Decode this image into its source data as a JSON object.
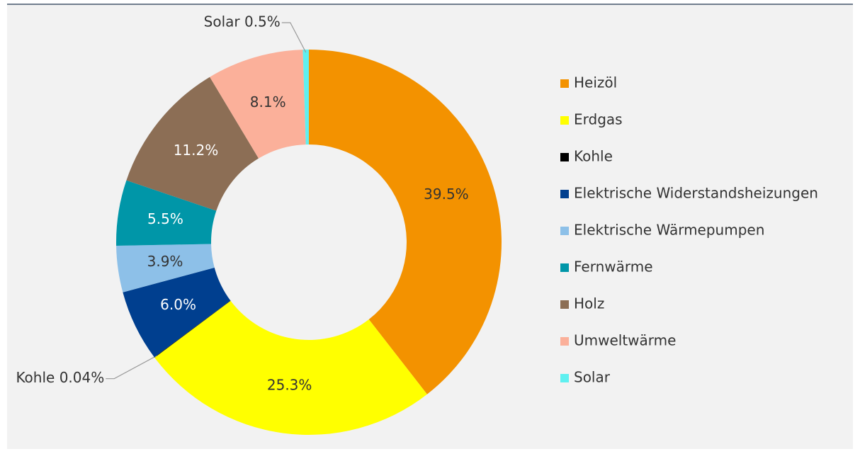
{
  "chart_data": {
    "type": "donut",
    "categories": [
      "Heizöl",
      "Erdgas",
      "Kohle",
      "Elektrische Widerstandsheizungen",
      "Elektrische Wärmepumpen",
      "Fernwärme",
      "Holz",
      "Umweltwärme",
      "Solar"
    ],
    "values": [
      39.5,
      25.3,
      0.04,
      6.0,
      3.9,
      5.5,
      11.2,
      8.1,
      0.5
    ],
    "value_labels": [
      "39.5%",
      "25.3%",
      "Kohle 0.04%",
      "6.0%",
      "3.9%",
      "5.5%",
      "11.2%",
      "8.1%",
      "Solar 0.5%"
    ],
    "colors": [
      "#f39200",
      "#ffff00",
      "#000000",
      "#003f8f",
      "#8dc0e8",
      "#0096a8",
      "#8c6e55",
      "#fbb09a",
      "#5ff0f0"
    ],
    "legend": "right"
  }
}
